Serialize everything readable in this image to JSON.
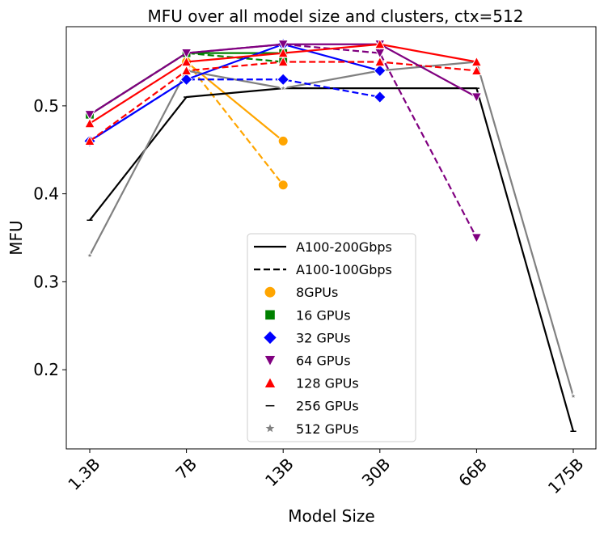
{
  "chart_data": {
    "type": "line",
    "title": "MFU over all model size and clusters, ctx=512",
    "xlabel": "Model Size",
    "ylabel": "MFU",
    "categories": [
      "1.3B",
      "7B",
      "13B",
      "30B",
      "66B",
      "175B"
    ],
    "ylim": [
      0.11,
      0.59
    ],
    "yticks": [
      0.2,
      0.3,
      0.4,
      0.5
    ],
    "ytick_labels": [
      "0.2",
      "0.3",
      "0.4",
      "0.5"
    ],
    "grid": false,
    "legend_position": "center-bottom",
    "legend": [
      {
        "label": "A100-200Gbps",
        "kind": "line",
        "dash": "solid",
        "color": "#000000"
      },
      {
        "label": "A100-100Gbps",
        "kind": "line",
        "dash": "dashed",
        "color": "#000000"
      },
      {
        "label": "8GPUs",
        "kind": "marker",
        "marker": "circle",
        "color": "#ffa500"
      },
      {
        "label": "16 GPUs",
        "kind": "marker",
        "marker": "square",
        "color": "#008000"
      },
      {
        "label": "32 GPUs",
        "kind": "marker",
        "marker": "diamond",
        "color": "#0000ff"
      },
      {
        "label": "64 GPUs",
        "kind": "marker",
        "marker": "triangle-down",
        "color": "#800080"
      },
      {
        "label": "128 GPUs",
        "kind": "marker",
        "marker": "triangle-up",
        "color": "#ff0000"
      },
      {
        "label": "256 GPUs",
        "kind": "marker",
        "marker": "hline",
        "color": "#000000"
      },
      {
        "label": "512 GPUs",
        "kind": "marker",
        "marker": "star",
        "color": "#808080"
      }
    ],
    "series": [
      {
        "name": "8 GPUs, A100-200Gbps",
        "gpus": 8,
        "network": "A100-200Gbps",
        "color": "#ffa500",
        "dash": "solid",
        "marker": "circle",
        "x": [
          1,
          2
        ],
        "values": [
          0.55,
          0.46
        ]
      },
      {
        "name": "8 GPUs, A100-100Gbps",
        "gpus": 8,
        "network": "A100-100Gbps",
        "color": "#ffa500",
        "dash": "dashed",
        "marker": "circle",
        "x": [
          1,
          2
        ],
        "values": [
          0.55,
          0.41
        ]
      },
      {
        "name": "256 GPUs, A100-200Gbps",
        "gpus": 256,
        "network": "A100-200Gbps",
        "color": "#000000",
        "dash": "solid",
        "marker": "hline",
        "x": [
          0,
          1,
          2,
          3,
          4,
          5
        ],
        "values": [
          0.37,
          0.51,
          0.52,
          0.52,
          0.52,
          0.13
        ]
      },
      {
        "name": "512 GPUs, A100-200Gbps",
        "gpus": 512,
        "network": "A100-200Gbps",
        "color": "#808080",
        "dash": "solid",
        "marker": "star",
        "x": [
          0,
          1,
          2,
          3,
          4,
          5
        ],
        "values": [
          0.33,
          0.54,
          0.52,
          0.54,
          0.55,
          0.17
        ]
      },
      {
        "name": "16 GPUs, A100-200Gbps",
        "gpus": 16,
        "network": "A100-200Gbps",
        "color": "#008000",
        "dash": "solid",
        "marker": "square",
        "x": [
          0,
          1,
          2
        ],
        "values": [
          0.49,
          0.56,
          0.56
        ]
      },
      {
        "name": "16 GPUs, A100-100Gbps",
        "gpus": 16,
        "network": "A100-100Gbps",
        "color": "#008000",
        "dash": "dashed",
        "marker": "square",
        "x": [
          0,
          1,
          2
        ],
        "values": [
          0.49,
          0.56,
          0.55
        ]
      },
      {
        "name": "32 GPUs, A100-200Gbps",
        "gpus": 32,
        "network": "A100-200Gbps",
        "color": "#0000ff",
        "dash": "solid",
        "marker": "diamond",
        "x": [
          0,
          1,
          2,
          3
        ],
        "values": [
          0.46,
          0.53,
          0.57,
          0.54
        ]
      },
      {
        "name": "32 GPUs, A100-100Gbps",
        "gpus": 32,
        "network": "A100-100Gbps",
        "color": "#0000ff",
        "dash": "dashed",
        "marker": "diamond",
        "x": [
          0,
          1,
          2,
          3
        ],
        "values": [
          0.46,
          0.53,
          0.53,
          0.51
        ]
      },
      {
        "name": "128 GPUs, A100-100Gbps",
        "gpus": 128,
        "network": "A100-100Gbps",
        "color": "#ff0000",
        "dash": "dashed",
        "marker": "triangle-up",
        "x": [
          0,
          1,
          2,
          3,
          4
        ],
        "values": [
          0.46,
          0.54,
          0.55,
          0.55,
          0.54
        ]
      },
      {
        "name": "64 GPUs, A100-100Gbps",
        "gpus": 64,
        "network": "A100-100Gbps",
        "color": "#800080",
        "dash": "dashed",
        "marker": "triangle-down",
        "x": [
          0,
          1,
          2,
          3,
          4
        ],
        "values": [
          0.49,
          0.56,
          0.57,
          0.56,
          0.35
        ]
      },
      {
        "name": "64 GPUs, A100-200Gbps",
        "gpus": 64,
        "network": "A100-200Gbps",
        "color": "#800080",
        "dash": "solid",
        "marker": "triangle-down",
        "x": [
          0,
          1,
          2,
          3,
          4
        ],
        "values": [
          0.49,
          0.56,
          0.57,
          0.57,
          0.51
        ]
      },
      {
        "name": "128 GPUs, A100-200Gbps",
        "gpus": 128,
        "network": "A100-200Gbps",
        "color": "#ff0000",
        "dash": "solid",
        "marker": "triangle-up",
        "x": [
          0,
          1,
          2,
          3,
          4
        ],
        "values": [
          0.48,
          0.55,
          0.56,
          0.57,
          0.55
        ]
      }
    ]
  }
}
